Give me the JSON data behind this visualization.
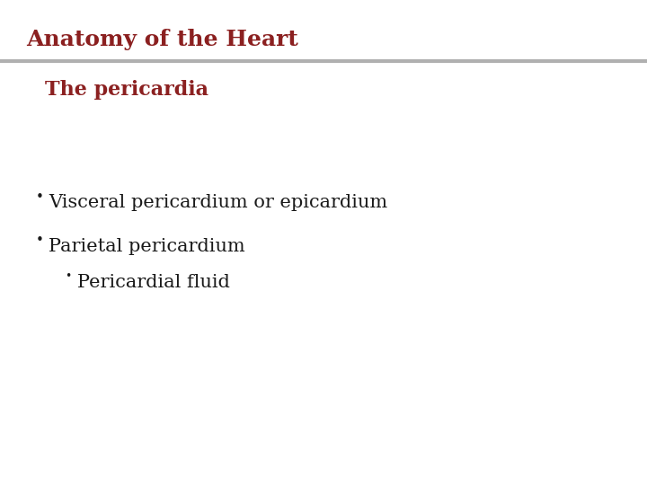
{
  "title": "Anatomy of the Heart",
  "title_color": "#8B2020",
  "title_fontsize": 18,
  "title_font": "serif",
  "title_bold": true,
  "title_italic": false,
  "subtitle": "The pericardia",
  "subtitle_color": "#8B2020",
  "subtitle_fontsize": 16,
  "subtitle_font": "serif",
  "subtitle_bold": true,
  "subtitle_italic": false,
  "separator_color": "#B0B0B0",
  "background_color": "#FFFFFF",
  "bullet_items": [
    {
      "text": "Visceral pericardium or epicardium",
      "level": 0
    },
    {
      "text": "Parietal pericardium",
      "level": 0
    },
    {
      "text": "Pericardial fluid",
      "level": 1
    }
  ],
  "bullet_color": "#1a1a1a",
  "bullet_fontsize": 15,
  "bullet_font": "serif"
}
